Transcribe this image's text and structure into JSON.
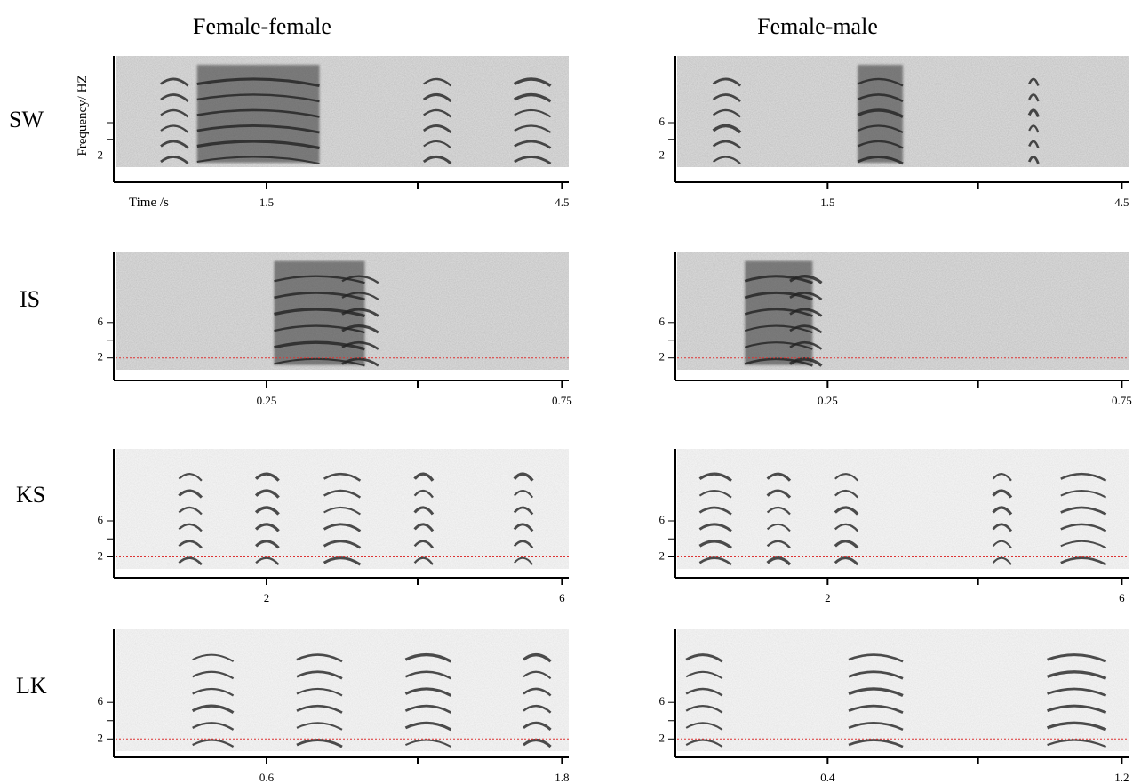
{
  "columns": [
    "Female-female",
    "Female-male"
  ],
  "rows": [
    "SW",
    "IS",
    "KS",
    "LK"
  ],
  "axis_labels": {
    "y": "Frequency/ HZ",
    "x": "Time /s"
  },
  "panels": [
    {
      "yticks": [
        "2"
      ],
      "xticks": [
        "1.5",
        "4.5"
      ]
    },
    {
      "yticks": [
        "6",
        "2"
      ],
      "xticks": [
        "1.5",
        "4.5"
      ]
    },
    {
      "yticks": [
        "6",
        "2"
      ],
      "xticks": [
        "0.25",
        "0.75"
      ]
    },
    {
      "yticks": [
        "6",
        "2"
      ],
      "xticks": [
        "0.25",
        "0.75"
      ]
    },
    {
      "yticks": [
        "6",
        "2"
      ],
      "xticks": [
        "2",
        "6"
      ]
    },
    {
      "yticks": [
        "6",
        "2"
      ],
      "xticks": [
        "2",
        "6"
      ]
    },
    {
      "yticks": [
        "6",
        "2"
      ],
      "xticks": [
        "0.6",
        "1.8"
      ]
    },
    {
      "yticks": [
        "6",
        "2"
      ],
      "xticks": [
        "0.4",
        "1.2"
      ]
    }
  ]
}
